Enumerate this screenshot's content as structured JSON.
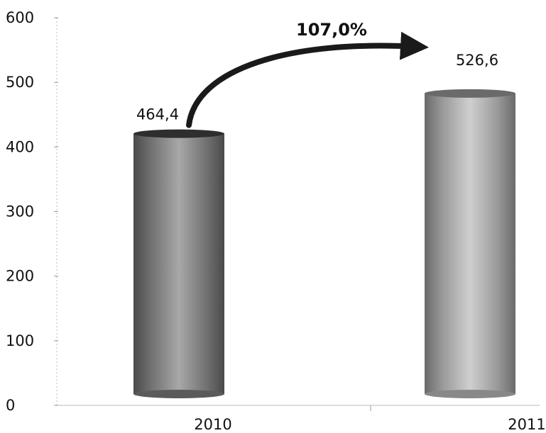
{
  "chart_data": {
    "type": "bar",
    "style": "3d-cylinder",
    "categories": [
      "2010",
      "2011"
    ],
    "values": [
      464.4,
      526.6
    ],
    "value_labels": [
      "464,4",
      "526,6"
    ],
    "ylim": [
      0,
      600
    ],
    "y_ticks": [
      0,
      100,
      200,
      300,
      400,
      500,
      600
    ],
    "y_tick_labels": [
      "0",
      "100",
      "200",
      "300",
      "400",
      "500",
      "600"
    ],
    "grid": false,
    "legend": "none",
    "annotation": {
      "text": "107,0%",
      "from_category": "2010",
      "to_category": "2011"
    },
    "colors": {
      "bar_dark": "#4a4a4a",
      "bar_mid": "#9a9a9a",
      "bar_light": "#c8c8c8",
      "arrow": "#1a1a1a",
      "axis": "#999999"
    }
  }
}
